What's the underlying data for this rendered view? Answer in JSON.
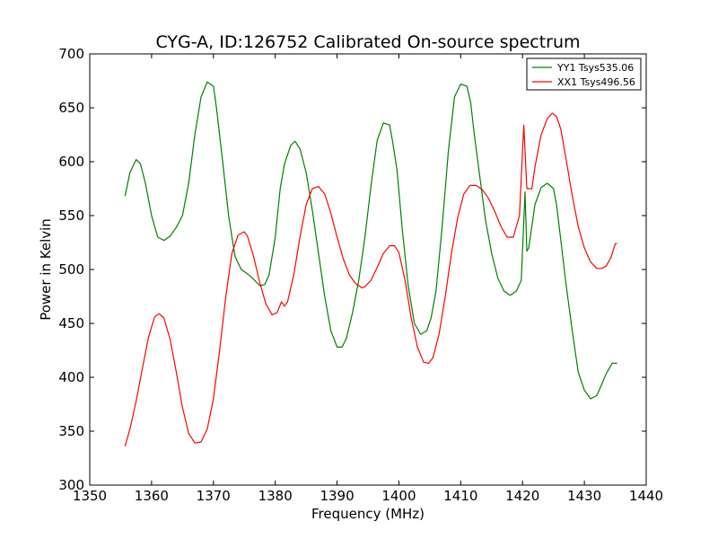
{
  "chart_data": {
    "type": "line",
    "title": "CYG-A, ID:126752 Calibrated On-source spectrum",
    "xlabel": "Frequency (MHz)",
    "ylabel": "Power in Kelvin",
    "xlim": [
      1350,
      1440
    ],
    "ylim": [
      300,
      700
    ],
    "xticks": [
      1350,
      1360,
      1370,
      1380,
      1390,
      1400,
      1410,
      1420,
      1430,
      1440
    ],
    "yticks": [
      300,
      350,
      400,
      450,
      500,
      550,
      600,
      650,
      700
    ],
    "grid": false,
    "legend_position": "top-right",
    "series": [
      {
        "name": "YY1 Tsys535.06",
        "color": "#008000",
        "x": [
          1355.7,
          1356.5,
          1357.5,
          1358.2,
          1359,
          1360,
          1361,
          1362,
          1363,
          1364,
          1365,
          1366,
          1367,
          1368,
          1369,
          1370,
          1370.5,
          1371.5,
          1372.5,
          1373.5,
          1374.5,
          1375.5,
          1376.5,
          1377.5,
          1378.3,
          1379,
          1380,
          1380.8,
          1381.5,
          1382.5,
          1383.2,
          1384,
          1385,
          1386,
          1387,
          1388,
          1389,
          1390,
          1390.8,
          1391.5,
          1392.5,
          1393.5,
          1394.5,
          1395.5,
          1396.5,
          1397.5,
          1398.5,
          1399,
          1399.7,
          1400.5,
          1401.5,
          1402.5,
          1403.5,
          1404.5,
          1405.2,
          1406,
          1407,
          1408,
          1409,
          1410,
          1411,
          1411.6,
          1412.2,
          1413,
          1414,
          1415,
          1416,
          1417,
          1418,
          1419,
          1419.8,
          1420.4,
          1420.7,
          1421,
          1421.5,
          1422,
          1423,
          1424,
          1425,
          1425.5,
          1426.2,
          1427,
          1428,
          1429,
          1430,
          1431,
          1432,
          1432.7,
          1433.5,
          1434.5,
          1435.3
        ],
        "values": [
          568,
          590,
          602,
          598,
          580,
          550,
          530,
          527,
          531,
          539,
          550,
          580,
          625,
          660,
          674,
          670,
          650,
          600,
          548,
          512,
          500,
          496,
          491,
          485,
          486,
          495,
          530,
          575,
          598,
          615,
          619,
          612,
          590,
          555,
          515,
          475,
          443,
          428,
          428,
          436,
          460,
          490,
          530,
          578,
          620,
          636,
          634,
          618,
          592,
          540,
          485,
          450,
          440,
          443,
          455,
          480,
          540,
          610,
          660,
          672,
          670,
          655,
          625,
          590,
          546,
          515,
          492,
          480,
          476,
          480,
          490,
          572,
          517,
          520,
          540,
          560,
          576,
          580,
          575,
          560,
          527,
          488,
          445,
          405,
          388,
          380,
          383,
          392,
          403,
          413,
          413
        ]
      },
      {
        "name": "XX1 Tsys496.56",
        "color": "#ff0000",
        "x": [
          1355.7,
          1356.5,
          1357.5,
          1358.5,
          1359.5,
          1360.5,
          1361.2,
          1362,
          1363,
          1364,
          1365,
          1366,
          1367,
          1368,
          1369,
          1370,
          1371,
          1372,
          1373,
          1374,
          1375,
          1375.5,
          1376.5,
          1377.5,
          1378.5,
          1379.5,
          1380.3,
          1381,
          1381.5,
          1382,
          1383,
          1384,
          1385,
          1386,
          1387,
          1388,
          1389,
          1390,
          1391,
          1392,
          1393,
          1394,
          1394.5,
          1395.5,
          1396.5,
          1397.5,
          1398.5,
          1399.3,
          1400,
          1401,
          1402,
          1403,
          1404,
          1404.8,
          1405.5,
          1406.5,
          1407.5,
          1408.5,
          1409.5,
          1410.5,
          1411.5,
          1412.5,
          1413.5,
          1414.5,
          1415.5,
          1416.5,
          1417.5,
          1418.5,
          1419.5,
          1420.2,
          1420.7,
          1421.1,
          1421.5,
          1422,
          1423,
          1424,
          1424.8,
          1425.5,
          1426.2,
          1427,
          1428,
          1429,
          1430,
          1431,
          1432,
          1432.8,
          1433.5,
          1434.3,
          1435,
          1435.3
        ],
        "values": [
          336,
          352,
          378,
          408,
          437,
          456,
          459,
          455,
          435,
          405,
          372,
          348,
          339,
          340,
          352,
          380,
          425,
          475,
          515,
          532,
          535,
          531,
          512,
          488,
          468,
          458,
          460,
          470,
          466,
          470,
          495,
          530,
          560,
          575,
          577,
          570,
          552,
          530,
          510,
          495,
          487,
          483,
          484,
          490,
          502,
          515,
          522,
          522,
          516,
          490,
          455,
          428,
          414,
          413,
          418,
          440,
          475,
          515,
          548,
          570,
          578,
          578,
          574,
          566,
          554,
          540,
          530,
          530,
          550,
          634,
          575,
          575,
          575,
          595,
          625,
          640,
          645,
          642,
          630,
          604,
          570,
          540,
          520,
          507,
          501,
          501,
          503,
          511,
          524,
          524
        ]
      }
    ]
  }
}
